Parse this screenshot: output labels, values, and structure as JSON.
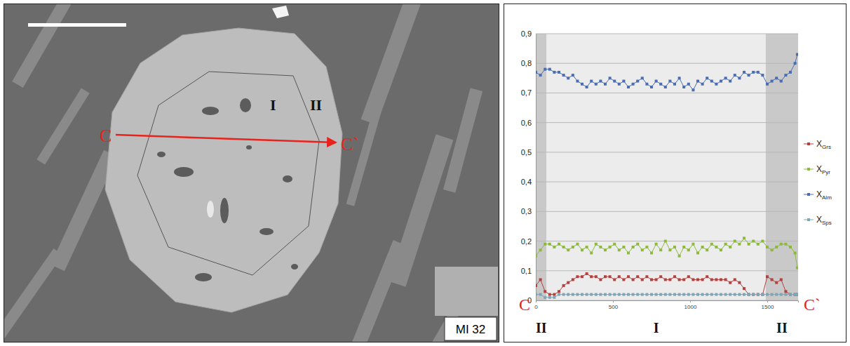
{
  "image_panel": {
    "start": "C",
    "end": "C`",
    "core": "I",
    "rim": "II",
    "sample": "MI 32"
  },
  "chart_data": {
    "type": "line",
    "x": [
      0,
      30,
      60,
      90,
      120,
      150,
      180,
      210,
      240,
      270,
      300,
      330,
      360,
      390,
      420,
      450,
      480,
      510,
      540,
      570,
      600,
      630,
      660,
      690,
      720,
      750,
      780,
      810,
      840,
      870,
      900,
      930,
      960,
      990,
      1020,
      1050,
      1080,
      1110,
      1140,
      1170,
      1200,
      1230,
      1260,
      1290,
      1320,
      1350,
      1380,
      1410,
      1440,
      1470,
      1500,
      1530,
      1560,
      1590,
      1620,
      1650,
      1680,
      1695
    ],
    "series": [
      {
        "name": "XGrs",
        "color": "#b5403e",
        "values": [
          0.05,
          0.07,
          0.03,
          0.02,
          0.02,
          0.03,
          0.05,
          0.06,
          0.07,
          0.08,
          0.08,
          0.09,
          0.08,
          0.08,
          0.07,
          0.08,
          0.08,
          0.07,
          0.08,
          0.07,
          0.08,
          0.07,
          0.08,
          0.07,
          0.08,
          0.07,
          0.07,
          0.08,
          0.07,
          0.07,
          0.08,
          0.07,
          0.07,
          0.08,
          0.07,
          0.07,
          0.07,
          0.08,
          0.07,
          0.07,
          0.07,
          0.07,
          0.06,
          0.07,
          0.06,
          0.04,
          0.02,
          0.02,
          0.02,
          0.02,
          0.08,
          0.07,
          0.06,
          0.07,
          0.03,
          0.02,
          0.02,
          0.02
        ]
      },
      {
        "name": "XPyr",
        "color": "#8cbb3c",
        "values": [
          0.15,
          0.17,
          0.19,
          0.19,
          0.18,
          0.19,
          0.18,
          0.17,
          0.18,
          0.19,
          0.17,
          0.18,
          0.16,
          0.19,
          0.18,
          0.17,
          0.18,
          0.19,
          0.17,
          0.18,
          0.16,
          0.18,
          0.19,
          0.17,
          0.18,
          0.16,
          0.19,
          0.17,
          0.2,
          0.17,
          0.18,
          0.15,
          0.18,
          0.17,
          0.19,
          0.16,
          0.18,
          0.17,
          0.19,
          0.18,
          0.17,
          0.19,
          0.18,
          0.2,
          0.19,
          0.21,
          0.19,
          0.2,
          0.19,
          0.2,
          0.18,
          0.17,
          0.18,
          0.19,
          0.19,
          0.18,
          0.16,
          0.11
        ]
      },
      {
        "name": "XAlm",
        "color": "#4a6db3",
        "values": [
          0.77,
          0.76,
          0.78,
          0.78,
          0.77,
          0.77,
          0.76,
          0.75,
          0.76,
          0.74,
          0.73,
          0.72,
          0.74,
          0.73,
          0.74,
          0.73,
          0.75,
          0.74,
          0.73,
          0.74,
          0.72,
          0.73,
          0.74,
          0.75,
          0.73,
          0.72,
          0.74,
          0.73,
          0.72,
          0.74,
          0.73,
          0.75,
          0.72,
          0.73,
          0.71,
          0.74,
          0.73,
          0.75,
          0.74,
          0.73,
          0.74,
          0.75,
          0.74,
          0.76,
          0.75,
          0.77,
          0.76,
          0.77,
          0.77,
          0.76,
          0.73,
          0.74,
          0.75,
          0.74,
          0.76,
          0.77,
          0.8,
          0.83
        ]
      },
      {
        "name": "XSps",
        "color": "#7fa6b6",
        "values": [
          0.02,
          0.02,
          0.01,
          0.01,
          0.01,
          0.02,
          0.02,
          0.02,
          0.02,
          0.02,
          0.02,
          0.02,
          0.02,
          0.02,
          0.02,
          0.02,
          0.02,
          0.02,
          0.02,
          0.02,
          0.02,
          0.02,
          0.02,
          0.02,
          0.02,
          0.02,
          0.02,
          0.02,
          0.02,
          0.02,
          0.02,
          0.02,
          0.02,
          0.02,
          0.02,
          0.02,
          0.02,
          0.02,
          0.02,
          0.02,
          0.02,
          0.02,
          0.02,
          0.02,
          0.02,
          0.02,
          0.02,
          0.02,
          0.02,
          0.02,
          0.02,
          0.02,
          0.02,
          0.02,
          0.02,
          0.02,
          0.02,
          0.02
        ]
      }
    ],
    "xlim": [
      0,
      1700
    ],
    "xticks": [
      0,
      500,
      1000,
      1500
    ],
    "ylim": [
      0,
      0.9
    ],
    "yticks": [
      0,
      {
        "value": 0.1,
        "label": "0,1"
      },
      {
        "value": 0.2,
        "label": "0,2"
      },
      {
        "value": 0.3,
        "label": "0,3"
      },
      {
        "value": 0.4,
        "label": "0,4"
      },
      {
        "value": 0.5,
        "label": "0,5"
      },
      {
        "value": 0.6,
        "label": "0,6"
      },
      {
        "value": 0.7,
        "label": "0,7"
      },
      {
        "value": 0.8,
        "label": "0,8"
      },
      {
        "value": 0.9,
        "label": "0,9"
      }
    ],
    "grid": true,
    "legend": "right",
    "marker": "square",
    "line_style": "solid",
    "zones": [
      {
        "label": "II",
        "x0": 0,
        "x1": 70
      },
      {
        "label": "I",
        "x0": 70,
        "x1": 1490
      },
      {
        "label": "II",
        "x0": 1490,
        "x1": 1700
      }
    ],
    "annotations": [
      {
        "text": "C",
        "x": 0
      },
      {
        "text": "C`",
        "x": 1700
      }
    ]
  }
}
